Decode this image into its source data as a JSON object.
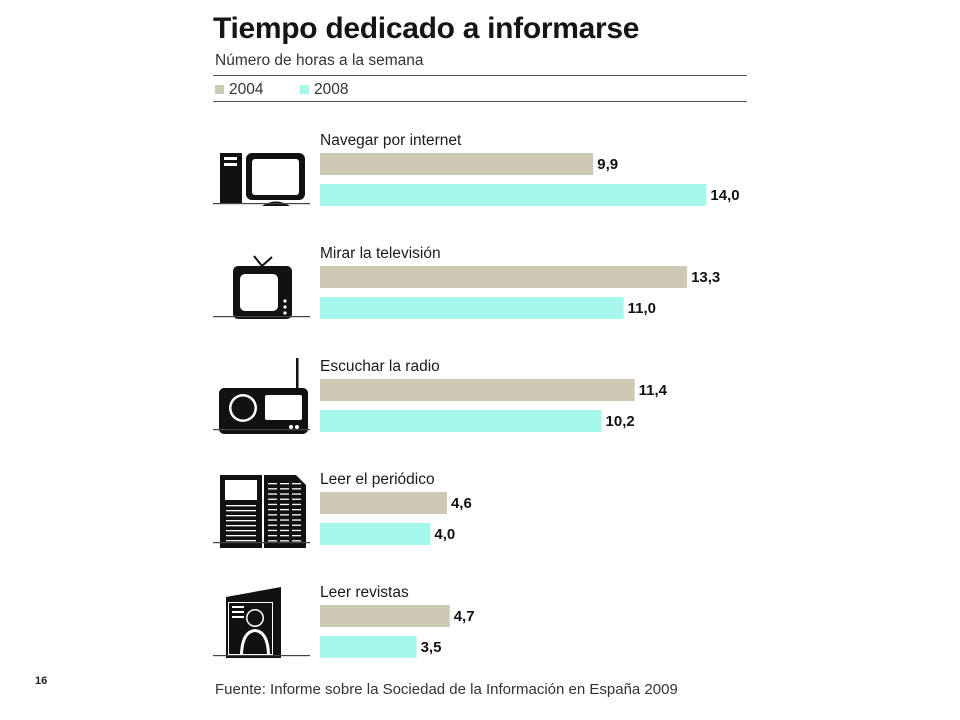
{
  "title": "Tiempo dedicado a informarse",
  "subtitle": "Número de horas a la semana",
  "legend": [
    {
      "label": "2004",
      "color": "#cdc9b5"
    },
    {
      "label": "2008",
      "color": "#a4f7ea"
    }
  ],
  "page_number": "16",
  "source": "Fuente: Informe sobre la Sociedad de la Información en España 2009",
  "chart_data": {
    "type": "bar",
    "orientation": "horizontal",
    "title": "Tiempo dedicado a informarse",
    "subtitle": "Número de horas a la semana",
    "categories": [
      "Navegar por internet",
      "Mirar la televisión",
      "Escuchar la radio",
      "Leer el periódico",
      "Leer revistas"
    ],
    "icons": [
      "computer-icon",
      "television-icon",
      "radio-icon",
      "newspaper-icon",
      "magazine-icon"
    ],
    "series": [
      {
        "name": "2004",
        "color": "#cdc9b5",
        "values": [
          9.9,
          13.3,
          11.4,
          4.6,
          4.7
        ],
        "labels": [
          "9,9",
          "13,3",
          "11,4",
          "4,6",
          "4,7"
        ]
      },
      {
        "name": "2008",
        "color": "#a4f7ea",
        "values": [
          14.0,
          11.0,
          10.2,
          4.0,
          3.5
        ],
        "labels": [
          "14,0",
          "11,0",
          "10,2",
          "4,0",
          "3,5"
        ]
      }
    ],
    "xlim": [
      0,
      14
    ],
    "grid": false,
    "legend_position": "top-left"
  }
}
